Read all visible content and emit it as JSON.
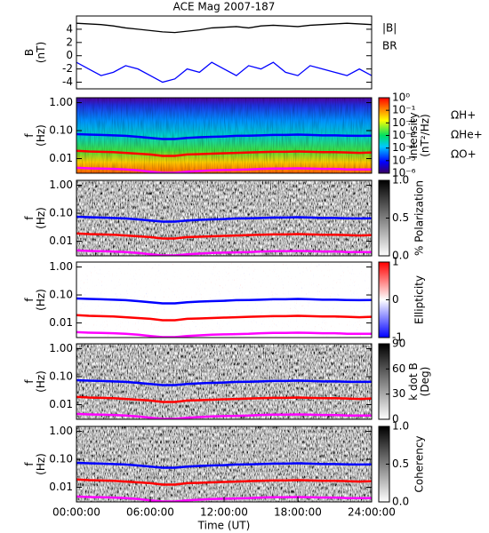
{
  "chart_data": [
    {
      "type": "line",
      "title": "ACE Mag 2007-187",
      "ylabel": [
        "B",
        "(nT)"
      ],
      "x": [
        0,
        1,
        2,
        3,
        4,
        5,
        6,
        7,
        8,
        9,
        10,
        11,
        12,
        13,
        14,
        15,
        16,
        17,
        18,
        19,
        20,
        21,
        22,
        23,
        24
      ],
      "xlim": [
        0,
        24
      ],
      "ylim": [
        -5,
        6
      ],
      "yticks": [
        -4,
        -2,
        0,
        2,
        4
      ],
      "series": [
        {
          "name": "|B|",
          "color": "#000000",
          "values": [
            4.9,
            4.8,
            4.7,
            4.5,
            4.2,
            4.0,
            3.8,
            3.6,
            3.5,
            3.7,
            3.9,
            4.2,
            4.3,
            4.4,
            4.2,
            4.5,
            4.6,
            4.5,
            4.4,
            4.6,
            4.7,
            4.8,
            4.9,
            4.8,
            4.7
          ]
        },
        {
          "name": "BR",
          "color": "#0000ff",
          "values": [
            -1,
            -2,
            -3,
            -2.5,
            -1.5,
            -2,
            -3,
            -4,
            -3.5,
            -2,
            -2.5,
            -1,
            -2,
            -3,
            -1.5,
            -2,
            -1,
            -2.5,
            -3,
            -1.5,
            -2,
            -2.5,
            -3,
            -2,
            -3
          ]
        }
      ]
    },
    {
      "type": "spectrogram",
      "ylabel": [
        "f",
        "(Hz)"
      ],
      "log_y": true,
      "colorscale": "rainbow",
      "x": [
        0,
        1,
        2,
        3,
        4,
        5,
        6,
        7,
        8,
        9,
        10,
        11,
        12,
        13,
        14,
        15,
        16,
        17,
        18,
        19,
        20,
        21,
        22,
        23,
        24
      ],
      "xlim": [
        0,
        24
      ],
      "ylim": [
        0.003,
        1.5
      ],
      "yticks": [
        {
          "value": 1,
          "label": "1.00"
        },
        {
          "value": 0.1,
          "label": "0.10"
        },
        {
          "value": 0.01,
          "label": "0.01"
        }
      ],
      "clim": [
        -6,
        0
      ],
      "cticks": [
        {
          "value": 0,
          "label": "10⁰"
        },
        {
          "value": -1,
          "label": "10⁻¹"
        },
        {
          "value": -2,
          "label": "10⁻²"
        },
        {
          "value": -3,
          "label": "10⁻³"
        },
        {
          "value": -4,
          "label": "10⁻⁴"
        },
        {
          "value": -5,
          "label": "10⁻⁵"
        },
        {
          "value": -6,
          "label": "10⁻⁶"
        }
      ],
      "colorbar_label": [
        "Intensity",
        "(nT²/Hz)"
      ],
      "series": [
        {
          "name": "ΩH+",
          "color": "#0000ff",
          "values": [
            0.075,
            0.072,
            0.07,
            0.068,
            0.065,
            0.06,
            0.055,
            0.05,
            0.05,
            0.055,
            0.058,
            0.06,
            0.062,
            0.065,
            0.066,
            0.068,
            0.07,
            0.07,
            0.072,
            0.07,
            0.068,
            0.068,
            0.066,
            0.065,
            0.066
          ]
        },
        {
          "name": "ΩHe+",
          "color": "#ff0000",
          "values": [
            0.019,
            0.018,
            0.0175,
            0.017,
            0.016,
            0.015,
            0.014,
            0.0125,
            0.0125,
            0.014,
            0.0145,
            0.015,
            0.0155,
            0.016,
            0.0165,
            0.017,
            0.0175,
            0.0175,
            0.018,
            0.0175,
            0.017,
            0.017,
            0.0165,
            0.016,
            0.0165
          ]
        },
        {
          "name": "ΩO+",
          "color": "#ff00ff",
          "values": [
            0.0047,
            0.0045,
            0.0044,
            0.0043,
            0.0041,
            0.0038,
            0.0034,
            0.0031,
            0.0031,
            0.0034,
            0.0036,
            0.0038,
            0.0039,
            0.004,
            0.0041,
            0.0043,
            0.0044,
            0.0044,
            0.0045,
            0.0044,
            0.0043,
            0.0043,
            0.0041,
            0.0041,
            0.0041
          ]
        }
      ]
    },
    {
      "type": "spectrogram",
      "ylabel": [
        "f",
        "(Hz)"
      ],
      "log_y": true,
      "colorscale": "gray",
      "xlim": [
        0,
        24
      ],
      "ylim": [
        0.003,
        1.5
      ],
      "yticks": [
        {
          "value": 1,
          "label": "1.00"
        },
        {
          "value": 0.1,
          "label": "0.10"
        },
        {
          "value": 0.01,
          "label": "0.01"
        }
      ],
      "clim": [
        0,
        1
      ],
      "cticks": [
        {
          "value": 0,
          "label": "0.0"
        },
        {
          "value": 0.5,
          "label": "0.5"
        },
        {
          "value": 1,
          "label": "1.0"
        }
      ],
      "colorbar_label": [
        "% Polarization"
      ]
    },
    {
      "type": "spectrogram",
      "ylabel": [
        "f",
        "(Hz)"
      ],
      "log_y": true,
      "colorscale": "redblue",
      "xlim": [
        0,
        24
      ],
      "ylim": [
        0.003,
        1.5
      ],
      "yticks": [
        {
          "value": 1,
          "label": "1.00"
        },
        {
          "value": 0.1,
          "label": "0.10"
        },
        {
          "value": 0.01,
          "label": "0.01"
        }
      ],
      "clim": [
        -1,
        1
      ],
      "cticks": [
        -1,
        0,
        1
      ],
      "colorbar_label": [
        "Ellipticity"
      ]
    },
    {
      "type": "spectrogram",
      "ylabel": [
        "f",
        "(Hz)"
      ],
      "log_y": true,
      "colorscale": "gray",
      "xlim": [
        0,
        24
      ],
      "ylim": [
        0.003,
        1.5
      ],
      "yticks": [
        {
          "value": 1,
          "label": "1.00"
        },
        {
          "value": 0.1,
          "label": "0.10"
        },
        {
          "value": 0.01,
          "label": "0.01"
        }
      ],
      "clim": [
        0,
        90
      ],
      "cticks": [
        0,
        30,
        60,
        90
      ],
      "colorbar_label": [
        "k dot B",
        "(Deg)"
      ]
    },
    {
      "type": "spectrogram",
      "ylabel": [
        "f",
        "(Hz)"
      ],
      "log_y": true,
      "colorscale": "gray",
      "xlim": [
        0,
        24
      ],
      "ylim": [
        0.003,
        1.5
      ],
      "yticks": [
        {
          "value": 1,
          "label": "1.00"
        },
        {
          "value": 0.1,
          "label": "0.10"
        },
        {
          "value": 0.01,
          "label": "0.01"
        }
      ],
      "clim": [
        0,
        1
      ],
      "cticks": [
        {
          "value": 0,
          "label": "0.0"
        },
        {
          "value": 0.5,
          "label": "0.5"
        },
        {
          "value": 1,
          "label": "1.0"
        }
      ],
      "colorbar_label": [
        "Coherency"
      ],
      "xticks": [
        {
          "value": 0,
          "label": "00:00:00"
        },
        {
          "value": 6,
          "label": "06:00:00"
        },
        {
          "value": 12,
          "label": "12:00:00"
        },
        {
          "value": 18,
          "label": "18:00:00"
        },
        {
          "value": 24,
          "label": "24:00:00"
        }
      ],
      "xlabel": "Time (UT)"
    }
  ]
}
